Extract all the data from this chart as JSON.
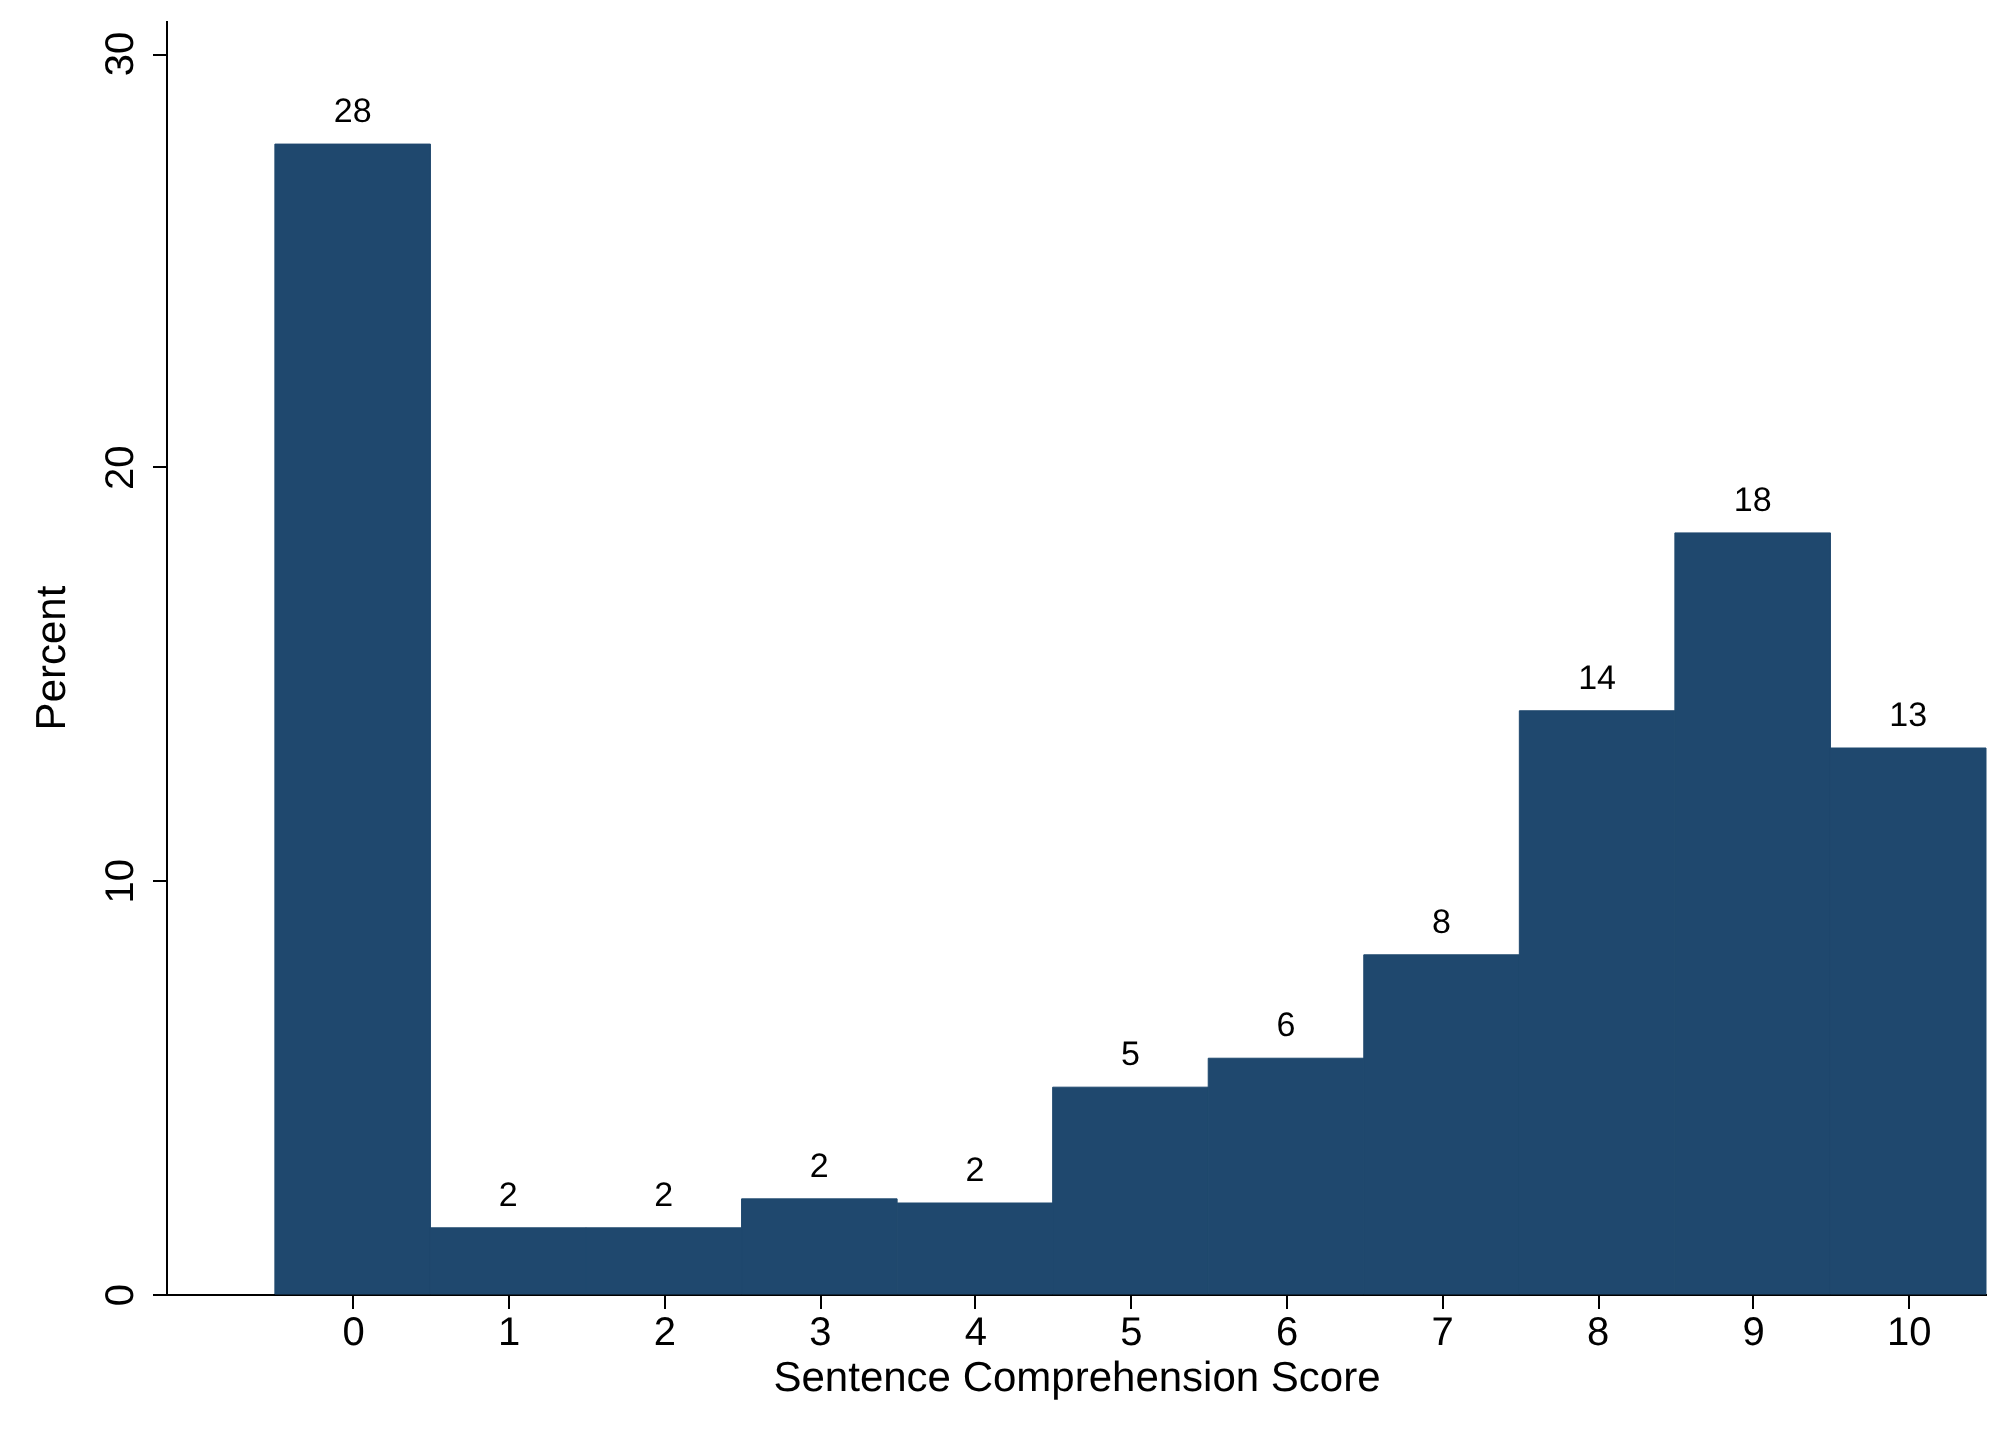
{
  "chart_data": {
    "type": "histogram",
    "xlabel": "Sentence Comprehension Score",
    "ylabel": "Percent",
    "bins": [
      -0.5,
      0.5,
      1.5,
      2.5,
      3.5,
      4.5,
      5.5,
      6.5,
      7.5,
      8.5,
      9.5,
      10.5
    ],
    "values": [
      27.8,
      1.6,
      1.6,
      2.3,
      2.2,
      5.0,
      5.7,
      8.2,
      14.1,
      18.4,
      13.2
    ],
    "value_labels": [
      "28",
      "2",
      "2",
      "2",
      "2",
      "5",
      "6",
      "8",
      "14",
      "18",
      "13"
    ],
    "color": "#1f486e",
    "xlim": [
      -1.2,
      10.5
    ],
    "xticks": [
      0,
      1,
      2,
      3,
      4,
      5,
      6,
      7,
      8,
      9,
      10
    ],
    "ylim": [
      0,
      30.8
    ],
    "yticks": [
      0,
      10,
      20,
      30
    ],
    "grid": false
  }
}
